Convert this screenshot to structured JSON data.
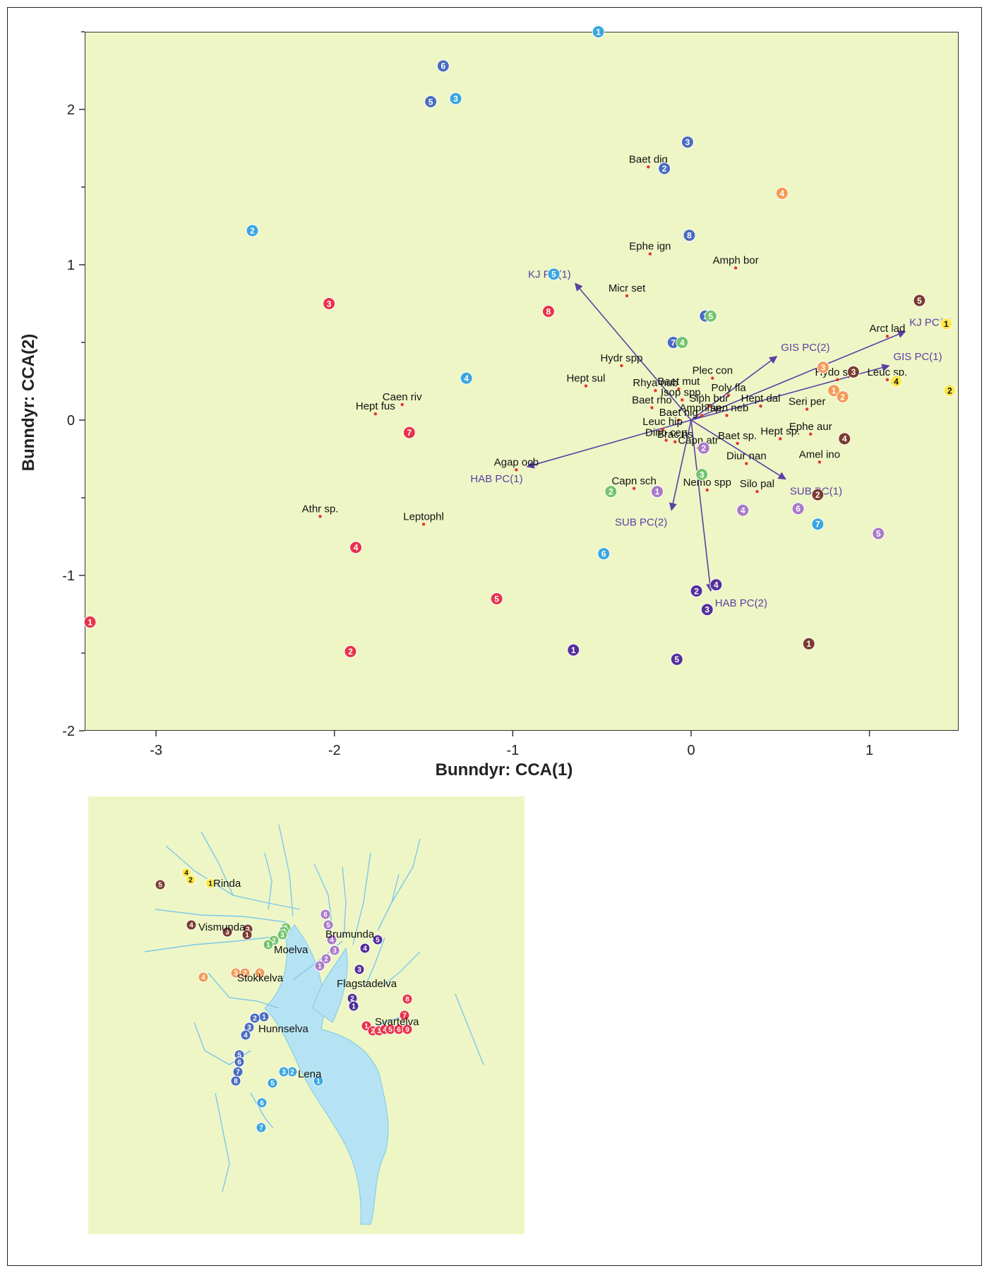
{
  "colors": {
    "panel_bg": "#eef6c6",
    "arrow": "#5b3fa3",
    "species_dot": "#e8332c",
    "water": "#b6e3f3",
    "river_line": "#7cc8ea",
    "Svartelva": "#e8334a",
    "Lena": "#3aa6e0",
    "Hunnselva": "#4a6cc0",
    "Flagstadelva": "#54309a",
    "Brumunda": "#a979c8",
    "Moelva": "#74c46c",
    "Stokkelva": "#f39a55",
    "Vismunda": "#7a3b2e",
    "Rinda": "#fbe84b"
  },
  "chart_data": {
    "type": "scatter",
    "xlabel": "Bunndyr: CCA(1)",
    "ylabel": "Bunndyr: CCA(2)",
    "xlim": [
      -3.4,
      1.5
    ],
    "ylim": [
      -2,
      2.5
    ],
    "xticks": [
      -3,
      -2,
      -1,
      0,
      1
    ],
    "yticks": [
      -2,
      -1,
      0,
      1,
      2
    ],
    "grid": false,
    "sites": [
      {
        "river": "Lena",
        "label": "1",
        "x": -0.52,
        "y": 2.5
      },
      {
        "river": "Lena",
        "label": "2",
        "x": -2.46,
        "y": 1.22
      },
      {
        "river": "Lena",
        "label": "3",
        "x": -1.32,
        "y": 2.07
      },
      {
        "river": "Lena",
        "label": "4",
        "x": -1.26,
        "y": 0.27
      },
      {
        "river": "Lena",
        "label": "5",
        "x": -0.77,
        "y": 0.94
      },
      {
        "river": "Lena",
        "label": "6",
        "x": -0.49,
        "y": -0.86
      },
      {
        "river": "Lena",
        "label": "7",
        "x": 0.71,
        "y": -0.67
      },
      {
        "river": "Hunnselva",
        "label": "1",
        "x": 0.08,
        "y": 0.67
      },
      {
        "river": "Hunnselva",
        "label": "2",
        "x": -0.15,
        "y": 1.62
      },
      {
        "river": "Hunnselva",
        "label": "3",
        "x": -0.02,
        "y": 1.79
      },
      {
        "river": "Hunnselva",
        "label": "5",
        "x": -1.46,
        "y": 2.05
      },
      {
        "river": "Hunnselva",
        "label": "6",
        "x": -1.39,
        "y": 2.28
      },
      {
        "river": "Hunnselva",
        "label": "7",
        "x": -0.1,
        "y": 0.5
      },
      {
        "river": "Hunnselva",
        "label": "8",
        "x": -0.01,
        "y": 1.19
      },
      {
        "river": "Svartelva",
        "label": "1",
        "x": -3.37,
        "y": -1.3
      },
      {
        "river": "Svartelva",
        "label": "2",
        "x": -1.91,
        "y": -1.49
      },
      {
        "river": "Svartelva",
        "label": "3",
        "x": -2.03,
        "y": 0.75
      },
      {
        "river": "Svartelva",
        "label": "4",
        "x": -1.88,
        "y": -0.82
      },
      {
        "river": "Svartelva",
        "label": "5",
        "x": -1.09,
        "y": -1.15
      },
      {
        "river": "Svartelva",
        "label": "7",
        "x": -1.58,
        "y": -0.08
      },
      {
        "river": "Svartelva",
        "label": "8",
        "x": -0.8,
        "y": 0.7
      },
      {
        "river": "Flagstadelva",
        "label": "1",
        "x": -0.66,
        "y": -1.48
      },
      {
        "river": "Flagstadelva",
        "label": "2",
        "x": 0.03,
        "y": -1.1
      },
      {
        "river": "Flagstadelva",
        "label": "3",
        "x": 0.09,
        "y": -1.22
      },
      {
        "river": "Flagstadelva",
        "label": "4",
        "x": 0.14,
        "y": -1.06
      },
      {
        "river": "Flagstadelva",
        "label": "5",
        "x": -0.08,
        "y": -1.54
      },
      {
        "river": "Brumunda",
        "label": "1",
        "x": -0.19,
        "y": -0.46
      },
      {
        "river": "Brumunda",
        "label": "2",
        "x": 0.07,
        "y": -0.18
      },
      {
        "river": "Brumunda",
        "label": "4",
        "x": 0.29,
        "y": -0.58
      },
      {
        "river": "Brumunda",
        "label": "5",
        "x": 1.05,
        "y": -0.73
      },
      {
        "river": "Brumunda",
        "label": "6",
        "x": 0.6,
        "y": -0.57
      },
      {
        "river": "Moelva",
        "label": "2",
        "x": -0.45,
        "y": -0.46
      },
      {
        "river": "Moelva",
        "label": "3",
        "x": 0.06,
        "y": -0.35
      },
      {
        "river": "Moelva",
        "label": "4",
        "x": -0.05,
        "y": 0.5
      },
      {
        "river": "Moelva",
        "label": "5",
        "x": 0.11,
        "y": 0.67
      },
      {
        "river": "Stokkelva",
        "label": "1",
        "x": 0.8,
        "y": 0.19
      },
      {
        "river": "Stokkelva",
        "label": "2",
        "x": 0.85,
        "y": 0.15
      },
      {
        "river": "Stokkelva",
        "label": "3",
        "x": 0.74,
        "y": 0.34
      },
      {
        "river": "Stokkelva",
        "label": "4",
        "x": 0.51,
        "y": 1.46
      },
      {
        "river": "Vismunda",
        "label": "1",
        "x": 0.66,
        "y": -1.44
      },
      {
        "river": "Vismunda",
        "label": "2",
        "x": 0.71,
        "y": -0.48
      },
      {
        "river": "Vismunda",
        "label": "3",
        "x": 0.91,
        "y": 0.31
      },
      {
        "river": "Vismunda",
        "label": "4",
        "x": 0.86,
        "y": -0.12
      },
      {
        "river": "Vismunda",
        "label": "5",
        "x": 1.28,
        "y": 0.77
      },
      {
        "river": "Rinda",
        "label": "1",
        "x": 1.43,
        "y": 0.62
      },
      {
        "river": "Rinda",
        "label": "2",
        "x": 1.45,
        "y": 0.19
      },
      {
        "river": "Rinda",
        "label": "4",
        "x": 1.15,
        "y": 0.25
      }
    ],
    "species": [
      {
        "label": "Baet dig",
        "x": -0.24,
        "y": 1.63
      },
      {
        "label": "Ephe ign",
        "x": -0.23,
        "y": 1.07
      },
      {
        "label": "Amph bor",
        "x": 0.25,
        "y": 0.98
      },
      {
        "label": "Micr set",
        "x": -0.36,
        "y": 0.8
      },
      {
        "label": "Arct lad",
        "x": 1.1,
        "y": 0.54
      },
      {
        "label": "Hydr spp",
        "x": -0.39,
        "y": 0.35
      },
      {
        "label": "Hept sul",
        "x": -0.59,
        "y": 0.22
      },
      {
        "label": "Rhya nub",
        "x": -0.2,
        "y": 0.19
      },
      {
        "label": "Plec con",
        "x": 0.12,
        "y": 0.27
      },
      {
        "label": "Baet mut",
        "x": -0.07,
        "y": 0.2
      },
      {
        "label": "Hydo spp",
        "x": 0.82,
        "y": 0.26
      },
      {
        "label": "Leuc sp.",
        "x": 1.1,
        "y": 0.26
      },
      {
        "label": "Poly fla",
        "x": 0.21,
        "y": 0.16
      },
      {
        "label": "Isop spp.",
        "x": -0.05,
        "y": 0.13
      },
      {
        "label": "Baet rho",
        "x": -0.22,
        "y": 0.08
      },
      {
        "label": "Siph bur",
        "x": 0.1,
        "y": 0.09
      },
      {
        "label": "Hept dal",
        "x": 0.39,
        "y": 0.09
      },
      {
        "label": "Seri per",
        "x": 0.65,
        "y": 0.07
      },
      {
        "label": "Caen riv",
        "x": -1.62,
        "y": 0.1
      },
      {
        "label": "Hept fus",
        "x": -1.77,
        "y": 0.04
      },
      {
        "label": "Amph sp.",
        "x": 0.06,
        "y": 0.03
      },
      {
        "label": "Baet nig",
        "x": -0.07,
        "y": 0.0
      },
      {
        "label": "Taen neb",
        "x": 0.2,
        "y": 0.03
      },
      {
        "label": "Leuc hip",
        "x": -0.16,
        "y": -0.06
      },
      {
        "label": "Ephe aur",
        "x": 0.67,
        "y": -0.09
      },
      {
        "label": "Dino cep",
        "x": -0.14,
        "y": -0.13
      },
      {
        "label": "Baet sp.",
        "x": 0.26,
        "y": -0.15
      },
      {
        "label": "Brac ris",
        "x": -0.09,
        "y": -0.14
      },
      {
        "label": "Hept sp.",
        "x": 0.5,
        "y": -0.12
      },
      {
        "label": "Capn atr",
        "x": 0.04,
        "y": -0.18
      },
      {
        "label": "Agap ocb",
        "x": -0.98,
        "y": -0.32
      },
      {
        "label": "Diur nan",
        "x": 0.31,
        "y": -0.28
      },
      {
        "label": "Amel ino",
        "x": 0.72,
        "y": -0.27
      },
      {
        "label": "Capn sch",
        "x": -0.32,
        "y": -0.44
      },
      {
        "label": "Silo pal",
        "x": 0.37,
        "y": -0.46
      },
      {
        "label": "Nemo spp",
        "x": 0.09,
        "y": -0.45
      },
      {
        "label": "Athr sp.",
        "x": -2.08,
        "y": -0.62
      },
      {
        "label": "Leptophl",
        "x": -1.5,
        "y": -0.67
      }
    ],
    "vectors": [
      {
        "label": "KJ PC(1)",
        "x": -0.65,
        "y": 0.88
      },
      {
        "label": "KJ PC(2)",
        "x": 1.2,
        "y": 0.57
      },
      {
        "label": "GIS PC(2)",
        "x": 0.48,
        "y": 0.41
      },
      {
        "label": "GIS PC(1)",
        "x": 1.11,
        "y": 0.35
      },
      {
        "label": "HAB PC(1)",
        "x": -0.92,
        "y": -0.3
      },
      {
        "label": "SUB PC(1)",
        "x": 0.53,
        "y": -0.38
      },
      {
        "label": "SUB PC(2)",
        "x": -0.11,
        "y": -0.58
      },
      {
        "label": "HAB PC(2)",
        "x": 0.11,
        "y": -1.1
      }
    ]
  },
  "map": {
    "rivers": [
      {
        "label": "Rinda",
        "key": "Rinda"
      },
      {
        "label": "Vismunda",
        "key": "Vismunda"
      },
      {
        "label": "Moelva",
        "key": "Moelva"
      },
      {
        "label": "Brumunda",
        "key": "Brumunda"
      },
      {
        "label": "Stokkelva",
        "key": "Stokkelva"
      },
      {
        "label": "Flagstadelva",
        "key": "Flagstadelva"
      },
      {
        "label": "Hunnselva",
        "key": "Hunnselva"
      },
      {
        "label": "Svartelva",
        "key": "Svartelva"
      },
      {
        "label": "Lena",
        "key": "Lena"
      }
    ],
    "sites": [
      {
        "river": "Rinda",
        "label": "4"
      },
      {
        "river": "Rinda",
        "label": "2"
      },
      {
        "river": "Rinda",
        "label": "1"
      },
      {
        "river": "Vismunda",
        "label": "5"
      },
      {
        "river": "Vismunda",
        "label": "4"
      },
      {
        "river": "Vismunda",
        "label": "3"
      },
      {
        "river": "Vismunda",
        "label": "2"
      },
      {
        "river": "Vismunda",
        "label": "1"
      },
      {
        "river": "Moelva",
        "label": "5"
      },
      {
        "river": "Moelva",
        "label": "4"
      },
      {
        "river": "Moelva",
        "label": "3"
      },
      {
        "river": "Moelva",
        "label": "2"
      },
      {
        "river": "Moelva",
        "label": "1"
      },
      {
        "river": "Stokkelva",
        "label": "4"
      },
      {
        "river": "Stokkelva",
        "label": "3"
      },
      {
        "river": "Stokkelva",
        "label": "2"
      },
      {
        "river": "Stokkelva",
        "label": "1"
      },
      {
        "river": "Brumunda",
        "label": "6"
      },
      {
        "river": "Brumunda",
        "label": "5"
      },
      {
        "river": "Brumunda",
        "label": "4"
      },
      {
        "river": "Brumunda",
        "label": "3"
      },
      {
        "river": "Brumunda",
        "label": "2"
      },
      {
        "river": "Brumunda",
        "label": "1"
      },
      {
        "river": "Flagstadelva",
        "label": "5"
      },
      {
        "river": "Flagstadelva",
        "label": "4"
      },
      {
        "river": "Flagstadelva",
        "label": "3"
      },
      {
        "river": "Flagstadelva",
        "label": "2"
      },
      {
        "river": "Flagstadelva",
        "label": "1"
      },
      {
        "river": "Hunnselva",
        "label": "1"
      },
      {
        "river": "Hunnselva",
        "label": "2"
      },
      {
        "river": "Hunnselva",
        "label": "3"
      },
      {
        "river": "Hunnselva",
        "label": "4"
      },
      {
        "river": "Hunnselva",
        "label": "5"
      },
      {
        "river": "Hunnselva",
        "label": "6"
      },
      {
        "river": "Hunnselva",
        "label": "7"
      },
      {
        "river": "Hunnselva",
        "label": "8"
      },
      {
        "river": "Svartelva",
        "label": "1"
      },
      {
        "river": "Svartelva",
        "label": "2"
      },
      {
        "river": "Svartelva",
        "label": "3"
      },
      {
        "river": "Svartelva",
        "label": "4"
      },
      {
        "river": "Svartelva",
        "label": "5"
      },
      {
        "river": "Svartelva",
        "label": "6"
      },
      {
        "river": "Svartelva",
        "label": "7"
      },
      {
        "river": "Svartelva",
        "label": "8"
      },
      {
        "river": "Svartelva",
        "label": "9"
      },
      {
        "river": "Lena",
        "label": "1"
      },
      {
        "river": "Lena",
        "label": "2"
      },
      {
        "river": "Lena",
        "label": "3"
      },
      {
        "river": "Lena",
        "label": "5"
      },
      {
        "river": "Lena",
        "label": "6"
      },
      {
        "river": "Lena",
        "label": "7"
      }
    ]
  }
}
